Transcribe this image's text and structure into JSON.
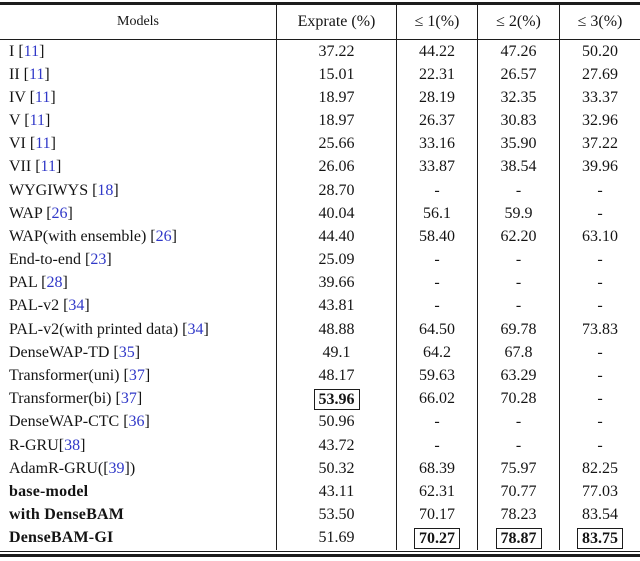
{
  "header": {
    "models": "Models",
    "exprate": "Exprate (%)",
    "le1": "≤ 1(%)",
    "le2": "≤ 2(%)",
    "le3": "≤ 3(%)"
  },
  "colors": {
    "citation_blue": "#3038c8",
    "text": "#141414",
    "rule": "#1c1c1c"
  },
  "table": {
    "rows": [
      {
        "pre": "I [",
        "ref": "11",
        "post": "]",
        "bold": false,
        "cells": [
          {
            "v": "37.22"
          },
          {
            "v": "44.22"
          },
          {
            "v": "47.26"
          },
          {
            "v": "50.20"
          }
        ]
      },
      {
        "pre": "II [",
        "ref": "11",
        "post": "]",
        "bold": false,
        "cells": [
          {
            "v": "15.01"
          },
          {
            "v": "22.31"
          },
          {
            "v": "26.57"
          },
          {
            "v": "27.69"
          }
        ]
      },
      {
        "pre": "IV [",
        "ref": "11",
        "post": "]",
        "bold": false,
        "cells": [
          {
            "v": "18.97"
          },
          {
            "v": "28.19"
          },
          {
            "v": "32.35"
          },
          {
            "v": "33.37"
          }
        ]
      },
      {
        "pre": "V [",
        "ref": "11",
        "post": "]",
        "bold": false,
        "cells": [
          {
            "v": "18.97"
          },
          {
            "v": "26.37"
          },
          {
            "v": "30.83"
          },
          {
            "v": "32.96"
          }
        ]
      },
      {
        "pre": "VI [",
        "ref": "11",
        "post": "]",
        "bold": false,
        "cells": [
          {
            "v": "25.66"
          },
          {
            "v": "33.16"
          },
          {
            "v": "35.90"
          },
          {
            "v": "37.22"
          }
        ]
      },
      {
        "pre": "VII [",
        "ref": "11",
        "post": "]",
        "bold": false,
        "cells": [
          {
            "v": "26.06"
          },
          {
            "v": "33.87"
          },
          {
            "v": "38.54"
          },
          {
            "v": "39.96"
          }
        ]
      },
      {
        "pre": "WYGIWYS [",
        "ref": "18",
        "post": "]",
        "bold": false,
        "cells": [
          {
            "v": "28.70"
          },
          {
            "v": "-"
          },
          {
            "v": "-"
          },
          {
            "v": "-"
          }
        ]
      },
      {
        "pre": "WAP [",
        "ref": "26",
        "post": "]",
        "bold": false,
        "cells": [
          {
            "v": "40.04"
          },
          {
            "v": "56.1"
          },
          {
            "v": "59.9"
          },
          {
            "v": "-"
          }
        ]
      },
      {
        "pre": "WAP(with ensemble) [",
        "ref": "26",
        "post": "]",
        "bold": false,
        "cells": [
          {
            "v": "44.40"
          },
          {
            "v": "58.40"
          },
          {
            "v": "62.20"
          },
          {
            "v": "63.10"
          }
        ]
      },
      {
        "pre": "End-to-end [",
        "ref": "23",
        "post": "]",
        "bold": false,
        "cells": [
          {
            "v": "25.09"
          },
          {
            "v": "-"
          },
          {
            "v": "-"
          },
          {
            "v": "-"
          }
        ]
      },
      {
        "pre": "PAL [",
        "ref": "28",
        "post": "]",
        "bold": false,
        "cells": [
          {
            "v": "39.66"
          },
          {
            "v": "-"
          },
          {
            "v": "-"
          },
          {
            "v": "-"
          }
        ]
      },
      {
        "pre": "PAL-v2 [",
        "ref": "34",
        "post": "]",
        "bold": false,
        "cells": [
          {
            "v": "43.81"
          },
          {
            "v": "-"
          },
          {
            "v": "-"
          },
          {
            "v": "-"
          }
        ]
      },
      {
        "pre": "PAL-v2(with printed data) [",
        "ref": "34",
        "post": "]",
        "bold": false,
        "cells": [
          {
            "v": "48.88"
          },
          {
            "v": "64.50"
          },
          {
            "v": "69.78"
          },
          {
            "v": "73.83"
          }
        ]
      },
      {
        "pre": "DenseWAP-TD [",
        "ref": "35",
        "post": "]",
        "bold": false,
        "cells": [
          {
            "v": "49.1"
          },
          {
            "v": "64.2"
          },
          {
            "v": "67.8"
          },
          {
            "v": "-"
          }
        ]
      },
      {
        "pre": "Transformer(uni) [",
        "ref": "37",
        "post": "]",
        "bold": false,
        "cells": [
          {
            "v": "48.17"
          },
          {
            "v": "59.63"
          },
          {
            "v": "63.29"
          },
          {
            "v": "-"
          }
        ]
      },
      {
        "pre": "Transformer(bi) [",
        "ref": "37",
        "post": "]",
        "bold": false,
        "cells": [
          {
            "v": "53.96",
            "boxed": true
          },
          {
            "v": "66.02"
          },
          {
            "v": "70.28"
          },
          {
            "v": "-"
          }
        ]
      },
      {
        "pre": "DenseWAP-CTC [",
        "ref": "36",
        "post": "]",
        "bold": false,
        "cells": [
          {
            "v": "50.96"
          },
          {
            "v": "-"
          },
          {
            "v": "-"
          },
          {
            "v": "-"
          }
        ]
      },
      {
        "pre": "R-GRU[",
        "ref": "38",
        "post": "]",
        "bold": false,
        "cells": [
          {
            "v": "43.72"
          },
          {
            "v": "-"
          },
          {
            "v": "-"
          },
          {
            "v": "-"
          }
        ]
      },
      {
        "pre": "AdamR-GRU([",
        "ref": "39",
        "post": "])",
        "bold": false,
        "cells": [
          {
            "v": "50.32"
          },
          {
            "v": "68.39"
          },
          {
            "v": "75.97"
          },
          {
            "v": "82.25"
          }
        ]
      },
      {
        "pre": "base-model",
        "ref": "",
        "post": "",
        "bold": true,
        "cells": [
          {
            "v": "43.11"
          },
          {
            "v": "62.31"
          },
          {
            "v": "70.77"
          },
          {
            "v": "77.03"
          }
        ]
      },
      {
        "pre": "with DenseBAM",
        "ref": "",
        "post": "",
        "bold": true,
        "cells": [
          {
            "v": "53.50"
          },
          {
            "v": "70.17"
          },
          {
            "v": "78.23"
          },
          {
            "v": "83.54"
          }
        ]
      },
      {
        "pre": "DenseBAM-GI",
        "ref": "",
        "post": "",
        "bold": true,
        "cells": [
          {
            "v": "51.69"
          },
          {
            "v": "70.27",
            "boxed": true
          },
          {
            "v": "78.87",
            "boxed": true
          },
          {
            "v": "83.75",
            "boxed": true
          }
        ]
      }
    ]
  }
}
